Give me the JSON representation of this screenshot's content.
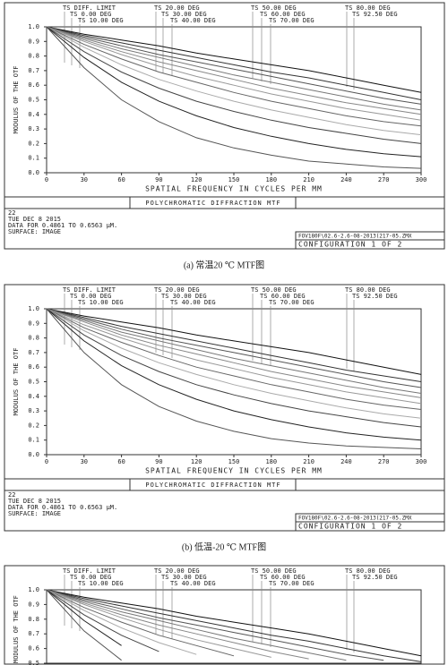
{
  "chart_data": [
    {
      "type": "line",
      "title": "POLYCHROMATIC DIFFRACTION MTF",
      "xlabel": "SPATIAL FREQUENCY IN CYCLES PER MM",
      "ylabel": "MODULUS OF THE OTF",
      "x": [
        0,
        30,
        60,
        90,
        120,
        150,
        180,
        210,
        240,
        270,
        300
      ],
      "xlim": [
        0,
        300
      ],
      "xticks": [
        0,
        30,
        60,
        90,
        120,
        150,
        180,
        210,
        240,
        270,
        300
      ],
      "ylim": [
        0,
        1
      ],
      "yticks": [
        {
          "value": 0,
          "label": "0.0"
        },
        {
          "value": 0.1,
          "label": "0.1"
        },
        {
          "value": 0.2,
          "label": "0.2"
        },
        {
          "value": 0.3,
          "label": "0.3"
        },
        {
          "value": 0.4,
          "label": "0.4"
        },
        {
          "value": 0.5,
          "label": "0.5"
        },
        {
          "value": 0.6,
          "label": "0.6"
        },
        {
          "value": 0.7,
          "label": "0.7"
        },
        {
          "value": 0.8,
          "label": "0.8"
        },
        {
          "value": 0.9,
          "label": "0.9"
        },
        {
          "value": 1,
          "label": "1.0"
        }
      ],
      "series": [
        {
          "name": "TS DIFF. LIMIT",
          "color": "#111111",
          "values": [
            1,
            0.95,
            0.91,
            0.87,
            0.82,
            0.78,
            0.74,
            0.7,
            0.65,
            0.6,
            0.55
          ]
        },
        {
          "name": "TS 0.00 DEG",
          "color": "#333333",
          "values": [
            1,
            0.94,
            0.89,
            0.84,
            0.79,
            0.74,
            0.69,
            0.65,
            0.6,
            0.55,
            0.5
          ]
        },
        {
          "name": "TS 10.00 DEG",
          "color": "#555555",
          "values": [
            1,
            0.93,
            0.87,
            0.81,
            0.76,
            0.71,
            0.66,
            0.61,
            0.56,
            0.51,
            0.47
          ]
        },
        {
          "name": "TS 20.00 DEG",
          "color": "#777777",
          "values": [
            1,
            0.92,
            0.85,
            0.79,
            0.73,
            0.67,
            0.62,
            0.57,
            0.52,
            0.47,
            0.43
          ]
        },
        {
          "name": "TS 30.00 DEG",
          "color": "#888888",
          "values": [
            1,
            0.91,
            0.83,
            0.76,
            0.7,
            0.64,
            0.58,
            0.53,
            0.48,
            0.44,
            0.4
          ]
        },
        {
          "name": "TS 40.00 DEG",
          "color": "#999999",
          "values": [
            1,
            0.9,
            0.81,
            0.73,
            0.66,
            0.6,
            0.54,
            0.49,
            0.44,
            0.4,
            0.36
          ]
        },
        {
          "name": "TS 50.00 DEG",
          "color": "#666666",
          "values": [
            1,
            0.88,
            0.78,
            0.69,
            0.62,
            0.55,
            0.49,
            0.44,
            0.39,
            0.35,
            0.32
          ]
        },
        {
          "name": "TS 60.00 DEG",
          "color": "#aaaaaa",
          "values": [
            1,
            0.86,
            0.74,
            0.64,
            0.56,
            0.49,
            0.43,
            0.38,
            0.33,
            0.29,
            0.26
          ]
        },
        {
          "name": "TS 70.00 DEG",
          "color": "#444444",
          "values": [
            1,
            0.83,
            0.69,
            0.58,
            0.49,
            0.42,
            0.36,
            0.31,
            0.27,
            0.23,
            0.2
          ]
        },
        {
          "name": "TS 80.00 DEG",
          "color": "#222222",
          "values": [
            1,
            0.79,
            0.62,
            0.49,
            0.39,
            0.31,
            0.25,
            0.2,
            0.16,
            0.13,
            0.11
          ]
        },
        {
          "name": "TS 92.50 DEG",
          "color": "#555555",
          "values": [
            1,
            0.72,
            0.5,
            0.35,
            0.24,
            0.17,
            0.12,
            0.08,
            0.06,
            0.04,
            0.03
          ]
        }
      ],
      "info": [
        "22",
        "TUE DEC 8 2015",
        "DATA FOR 0.4861 TO 0.6563 µM.",
        "SURFACE: IMAGE"
      ],
      "file": "FOV180F\\02.6-2.6-08-2013(217-05.ZMX",
      "configuration": "CONFIGURATION 1 OF 2",
      "caption": "(a)  常温20 ℃ MTF图"
    },
    {
      "type": "line",
      "title": "POLYCHROMATIC DIFFRACTION MTF",
      "xlabel": "SPATIAL FREQUENCY IN CYCLES PER MM",
      "ylabel": "MODULUS OF THE OTF",
      "x": [
        0,
        30,
        60,
        90,
        120,
        150,
        180,
        210,
        240,
        270,
        300
      ],
      "xlim": [
        0,
        300
      ],
      "xticks": [
        0,
        30,
        60,
        90,
        120,
        150,
        180,
        210,
        240,
        270,
        300
      ],
      "ylim": [
        0,
        1
      ],
      "yticks": [
        {
          "value": 0,
          "label": "0.0"
        },
        {
          "value": 0.1,
          "label": "0.1"
        },
        {
          "value": 0.2,
          "label": "0.2"
        },
        {
          "value": 0.3,
          "label": "0.3"
        },
        {
          "value": 0.4,
          "label": "0.4"
        },
        {
          "value": 0.5,
          "label": "0.5"
        },
        {
          "value": 0.6,
          "label": "0.6"
        },
        {
          "value": 0.7,
          "label": "0.7"
        },
        {
          "value": 0.8,
          "label": "0.8"
        },
        {
          "value": 0.9,
          "label": "0.9"
        },
        {
          "value": 1,
          "label": "1.0"
        }
      ],
      "series": [
        {
          "name": "TS DIFF. LIMIT",
          "color": "#111111",
          "values": [
            1,
            0.95,
            0.91,
            0.87,
            0.82,
            0.78,
            0.74,
            0.7,
            0.65,
            0.6,
            0.55
          ]
        },
        {
          "name": "TS 0.00 DEG",
          "color": "#333333",
          "values": [
            1,
            0.94,
            0.88,
            0.83,
            0.78,
            0.73,
            0.68,
            0.63,
            0.58,
            0.54,
            0.5
          ]
        },
        {
          "name": "TS 10.00 DEG",
          "color": "#555555",
          "values": [
            1,
            0.93,
            0.86,
            0.8,
            0.75,
            0.7,
            0.65,
            0.6,
            0.55,
            0.5,
            0.46
          ]
        },
        {
          "name": "TS 20.00 DEG",
          "color": "#777777",
          "values": [
            1,
            0.92,
            0.84,
            0.78,
            0.72,
            0.66,
            0.61,
            0.56,
            0.51,
            0.46,
            0.42
          ]
        },
        {
          "name": "TS 30.00 DEG",
          "color": "#888888",
          "values": [
            1,
            0.91,
            0.82,
            0.75,
            0.69,
            0.63,
            0.57,
            0.52,
            0.47,
            0.43,
            0.39
          ]
        },
        {
          "name": "TS 40.00 DEG",
          "color": "#999999",
          "values": [
            1,
            0.89,
            0.8,
            0.72,
            0.65,
            0.59,
            0.53,
            0.48,
            0.43,
            0.39,
            0.35
          ]
        },
        {
          "name": "TS 50.00 DEG",
          "color": "#666666",
          "values": [
            1,
            0.87,
            0.77,
            0.68,
            0.6,
            0.54,
            0.48,
            0.43,
            0.38,
            0.34,
            0.31
          ]
        },
        {
          "name": "TS 60.00 DEG",
          "color": "#aaaaaa",
          "values": [
            1,
            0.85,
            0.73,
            0.63,
            0.55,
            0.48,
            0.42,
            0.37,
            0.32,
            0.28,
            0.25
          ]
        },
        {
          "name": "TS 70.00 DEG",
          "color": "#444444",
          "values": [
            1,
            0.82,
            0.68,
            0.57,
            0.48,
            0.41,
            0.35,
            0.3,
            0.26,
            0.22,
            0.19
          ]
        },
        {
          "name": "TS 80.00 DEG",
          "color": "#222222",
          "values": [
            1,
            0.78,
            0.61,
            0.48,
            0.38,
            0.3,
            0.24,
            0.19,
            0.15,
            0.12,
            0.1
          ]
        },
        {
          "name": "TS 92.50 DEG",
          "color": "#555555",
          "values": [
            1,
            0.7,
            0.48,
            0.33,
            0.23,
            0.16,
            0.11,
            0.08,
            0.06,
            0.05,
            0.04
          ]
        }
      ],
      "info": [
        "22",
        "TUE DEC 8 2015",
        "DATA FOR 0.4861 TO 0.6563 µM.",
        "SURFACE: IMAGE"
      ],
      "file": "FOV180F\\02.6-2.6-08-2013(217-05.ZMX",
      "configuration": "CONFIGURATION 1 OF 2",
      "caption": "(b)  低温-20 ℃ MTF图"
    },
    {
      "type": "line",
      "ylabel": "MODULUS OF THE OTF",
      "x": [
        0,
        30,
        60,
        90,
        120,
        150,
        180,
        210,
        240,
        270,
        300
      ],
      "xlim": [
        0,
        300
      ],
      "ylim": [
        0.5,
        1
      ],
      "yticks": [
        {
          "value": 0.5,
          "label": "0.5"
        },
        {
          "value": 0.6,
          "label": "0.6"
        },
        {
          "value": 0.7,
          "label": "0.7"
        },
        {
          "value": 0.8,
          "label": "0.8"
        },
        {
          "value": 0.9,
          "label": "0.9"
        },
        {
          "value": 1,
          "label": "1.0"
        }
      ],
      "series": [
        {
          "name": "TS DIFF. LIMIT",
          "color": "#111111",
          "values": [
            1,
            0.95,
            0.91,
            0.87,
            0.82,
            0.78,
            0.74,
            0.7,
            0.65,
            0.6,
            0.55
          ]
        },
        {
          "name": "TS 0.00 DEG",
          "color": "#333333",
          "values": [
            1,
            0.94,
            0.89,
            0.84,
            0.79,
            0.74,
            0.69,
            0.65,
            0.6,
            0.55,
            0.51
          ]
        },
        {
          "name": "TS 10.00 DEG",
          "color": "#555555",
          "values": [
            1,
            0.93,
            0.87,
            0.81,
            0.76,
            0.71,
            0.66,
            0.61,
            0.56,
            0.52,
            null
          ]
        },
        {
          "name": "TS 20.00 DEG",
          "color": "#777777",
          "values": [
            1,
            0.92,
            0.85,
            0.79,
            0.73,
            0.67,
            0.62,
            0.57,
            0.52,
            null,
            null
          ]
        },
        {
          "name": "TS 30.00 DEG",
          "color": "#888888",
          "values": [
            1,
            0.91,
            0.83,
            0.76,
            0.7,
            0.64,
            0.58,
            0.53,
            null,
            null,
            null
          ]
        },
        {
          "name": "TS 40.00 DEG",
          "color": "#999999",
          "values": [
            1,
            0.9,
            0.81,
            0.73,
            0.66,
            0.6,
            0.54,
            null,
            null,
            null,
            null
          ]
        },
        {
          "name": "TS 50.00 DEG",
          "color": "#666666",
          "values": [
            1,
            0.88,
            0.78,
            0.69,
            0.62,
            0.55,
            null,
            null,
            null,
            null,
            null
          ]
        },
        {
          "name": "TS 60.00 DEG",
          "color": "#aaaaaa",
          "values": [
            1,
            0.86,
            0.74,
            0.64,
            0.56,
            null,
            null,
            null,
            null,
            null,
            null
          ]
        },
        {
          "name": "TS 70.00 DEG",
          "color": "#444444",
          "values": [
            1,
            0.83,
            0.69,
            0.58,
            null,
            null,
            null,
            null,
            null,
            null,
            null
          ]
        },
        {
          "name": "TS 80.00 DEG",
          "color": "#222222",
          "values": [
            1,
            0.79,
            0.62,
            null,
            null,
            null,
            null,
            null,
            null,
            null,
            null
          ]
        },
        {
          "name": "TS 92.50 DEG",
          "color": "#555555",
          "values": [
            1,
            0.72,
            0.52,
            null,
            null,
            null,
            null,
            null,
            null,
            null,
            null
          ]
        }
      ]
    }
  ]
}
